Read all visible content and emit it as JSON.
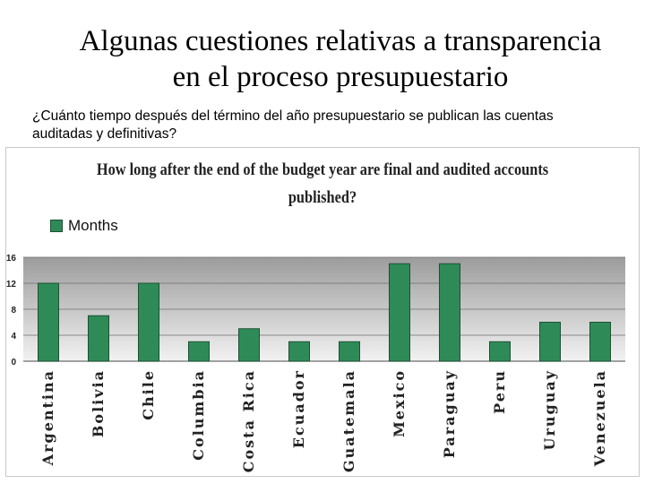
{
  "slide": {
    "title_line1": "Algunas cuestiones relativas a transparencia",
    "title_line2": "en el proceso presupuestario",
    "question": "¿Cuánto tiempo después del término del año presupuestario se publican las cuentas auditadas y definitivas?"
  },
  "colors": {
    "bar": "#2e8b57",
    "bar_border": "#1f4f34",
    "plot_top": "#9c9c9c",
    "plot_bottom": "#f2f2f2",
    "gridline": "#6e6e6e"
  },
  "chart_data": {
    "type": "bar",
    "title_line1": "How long after the end of the budget year are final and audited accounts",
    "title_line2": "published?",
    "legend_position": "top-left",
    "categories": [
      "Argentina",
      "Bolivia",
      "Chile",
      "Columbia",
      "Costa Rica",
      "Ecuador",
      "Guatemala",
      "Mexico",
      "Paraguay",
      "Peru",
      "Uruguay",
      "Venezuela"
    ],
    "series": [
      {
        "name": "Months",
        "values": [
          12,
          7,
          12,
          3,
          5,
          3,
          3,
          15,
          15,
          3,
          6,
          6
        ]
      }
    ],
    "yticks": [
      0,
      4,
      8,
      12,
      16
    ],
    "ylim": [
      0,
      16
    ],
    "grid": true
  }
}
